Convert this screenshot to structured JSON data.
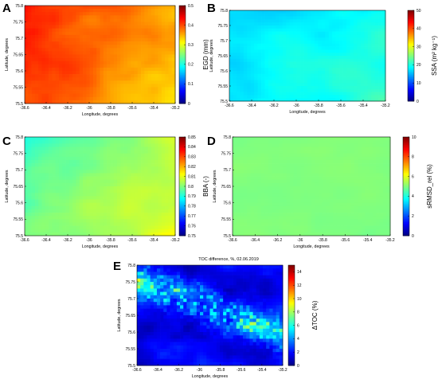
{
  "figure": {
    "panels": [
      "A",
      "B",
      "C",
      "D",
      "E"
    ]
  },
  "colors": {
    "colormap": "jet",
    "jet_stops": [
      "#00007f",
      "#0000ff",
      "#007fff",
      "#00ffff",
      "#7fff7f",
      "#ffff00",
      "#ff7f00",
      "#ff0000",
      "#7f0000"
    ]
  },
  "chart_data": [
    {
      "panel": "A",
      "type": "heatmap",
      "title": "",
      "xlabel": "Longitude, degrees",
      "ylabel": "Latitude, degrees",
      "colorbar_label": "EGD (mm)",
      "xlim": [
        -36.6,
        -35.2
      ],
      "ylim": [
        75.5,
        75.8
      ],
      "xticks": [
        "-36.6",
        "-36.4",
        "-36.2",
        "-36",
        "-35.8",
        "-35.6",
        "-35.4",
        "-35.2"
      ],
      "yticks": [
        "75.5",
        "75.55",
        "75.6",
        "75.65",
        "75.7",
        "75.75",
        "75.8"
      ],
      "clim": [
        0,
        0.5
      ],
      "cticks": [
        "0",
        "0.1",
        "0.2",
        "0.3",
        "0.4",
        "0.5"
      ],
      "value_range_observed": [
        0.3,
        0.45
      ],
      "pattern": "higher (orange-red, ~0.42) in west and north, lower (yellow-green, ~0.32) in east and south"
    },
    {
      "panel": "B",
      "type": "heatmap",
      "title": "",
      "xlabel": "Longitude, degrees",
      "ylabel": "Latitude, degrees",
      "colorbar_label": "SSA (m² kg⁻¹)",
      "xlim": [
        -36.6,
        -35.2
      ],
      "ylim": [
        75.5,
        75.8
      ],
      "xticks": [
        "-36.6",
        "-36.4",
        "-36.2",
        "-36",
        "-35.8",
        "-35.6",
        "-35.4",
        "-35.2"
      ],
      "yticks": [
        "75.5",
        "75.55",
        "75.6",
        "75.65",
        "75.7",
        "75.75",
        "75.8"
      ],
      "clim": [
        0,
        50
      ],
      "cticks": [
        "0",
        "10",
        "20",
        "30",
        "40",
        "50"
      ],
      "value_range_observed": [
        14,
        22
      ],
      "pattern": "mostly cyan (~17), slightly greener (~20) in east and south"
    },
    {
      "panel": "C",
      "type": "heatmap",
      "title": "",
      "xlabel": "Longitude, degrees",
      "ylabel": "Latitude, degrees",
      "colorbar_label": "BBA (-)",
      "xlim": [
        -36.6,
        -35.2
      ],
      "ylim": [
        75.5,
        75.8
      ],
      "xticks": [
        "-36.6",
        "-36.4",
        "-36.2",
        "-36",
        "-35.8",
        "-35.6",
        "-35.4",
        "-35.2"
      ],
      "yticks": [
        "75.5",
        "75.55",
        "75.6",
        "75.65",
        "75.7",
        "75.75",
        "75.8"
      ],
      "clim": [
        0.75,
        0.85
      ],
      "cticks": [
        "0.75",
        "0.76",
        "0.77",
        "0.78",
        "0.79",
        "0.8",
        "0.81",
        "0.82",
        "0.83",
        "0.84",
        "0.85"
      ],
      "value_range_observed": [
        0.79,
        0.81
      ],
      "pattern": "mostly light blue (~0.795), greener (~0.805) toward south-east"
    },
    {
      "panel": "D",
      "type": "heatmap",
      "title": "",
      "xlabel": "Longitude, degrees",
      "ylabel": "Latitude, degrees",
      "colorbar_label": "sRMSD_rel (%)",
      "xlim": [
        -36.6,
        -35.2
      ],
      "ylim": [
        75.5,
        75.8
      ],
      "xticks": [
        "-36.6",
        "-36.4",
        "-36.2",
        "-36",
        "-35.8",
        "-35.6",
        "-35.4",
        "-35.2"
      ],
      "yticks": [
        "75.5",
        "75.55",
        "75.6",
        "75.65",
        "75.7",
        "75.75",
        "75.8"
      ],
      "clim": [
        0,
        10
      ],
      "cticks": [
        "0",
        "2",
        "4",
        "6",
        "8",
        "10"
      ],
      "value_range_observed": [
        4.5,
        5.5
      ],
      "pattern": "nearly uniform light green (~5)"
    },
    {
      "panel": "E",
      "type": "heatmap",
      "title": "TOC difference, %, 02.06.2019",
      "xlabel": "Longitude, degrees",
      "ylabel": "Latitude, degrees",
      "colorbar_label": "ΔTOC (%)",
      "xlim": [
        -36.6,
        -35.2
      ],
      "ylim": [
        75.5,
        75.8
      ],
      "xticks": [
        "-36.6",
        "-36.4",
        "-36.2",
        "-36",
        "-35.8",
        "-35.6",
        "-35.4",
        "-35.2"
      ],
      "yticks": [
        "75.5",
        "75.55",
        "75.6",
        "75.65",
        "75.7",
        "75.75",
        "75.8"
      ],
      "clim": [
        0,
        15
      ],
      "cticks": [
        "0",
        "2",
        "4",
        "6",
        "8",
        "10",
        "12",
        "14"
      ],
      "value_range_observed": [
        0,
        10
      ],
      "pattern": "mostly dark blue (~2), speckled cyan/green (~6–9) band through the centre-north"
    }
  ]
}
